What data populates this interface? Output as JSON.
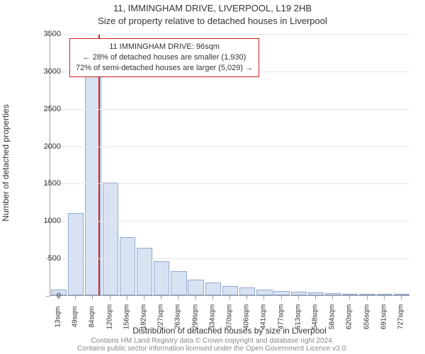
{
  "title_main": "11, IMMINGHAM DRIVE, LIVERPOOL, L19 2HB",
  "title_sub": "Size of property relative to detached houses in Liverpool",
  "ylabel": "Number of detached properties",
  "xlabel": "Distribution of detached houses by size in Liverpool",
  "footer1": "Contains HM Land Registry data © Crown copyright and database right 2024.",
  "footer2": "Contains public sector information licensed under the Open Government Licence v3.0.",
  "legend": {
    "line1": "11 IMMINGHAM DRIVE: 96sqm",
    "line2": "← 28% of detached houses are smaller (1,930)",
    "line3": "72% of semi-detached houses are larger (5,029) →"
  },
  "chart": {
    "type": "histogram",
    "y_max": 3500,
    "y_ticks": [
      0,
      500,
      1000,
      1500,
      2000,
      2500,
      3000,
      3500
    ],
    "x_ticks": [
      "13sqm",
      "49sqm",
      "84sqm",
      "120sqm",
      "156sqm",
      "192sqm",
      "227sqm",
      "263sqm",
      "299sqm",
      "334sqm",
      "370sqm",
      "406sqm",
      "441sqm",
      "477sqm",
      "513sqm",
      "548sqm",
      "584sqm",
      "620sqm",
      "656sqm",
      "691sqm",
      "727sqm"
    ],
    "bars": [
      80,
      1100,
      3250,
      1500,
      780,
      630,
      450,
      320,
      210,
      170,
      120,
      100,
      80,
      60,
      50,
      35,
      25,
      15,
      10,
      5,
      3
    ],
    "bar_fill": "#d8e2f2",
    "bar_stroke": "#8fa8d0",
    "marker_x_value": 96,
    "marker_color": "#d02020",
    "grid_color": "#e5e5e5",
    "title_fontsize": 13,
    "label_fontsize": 12,
    "tick_fontsize": 11
  }
}
